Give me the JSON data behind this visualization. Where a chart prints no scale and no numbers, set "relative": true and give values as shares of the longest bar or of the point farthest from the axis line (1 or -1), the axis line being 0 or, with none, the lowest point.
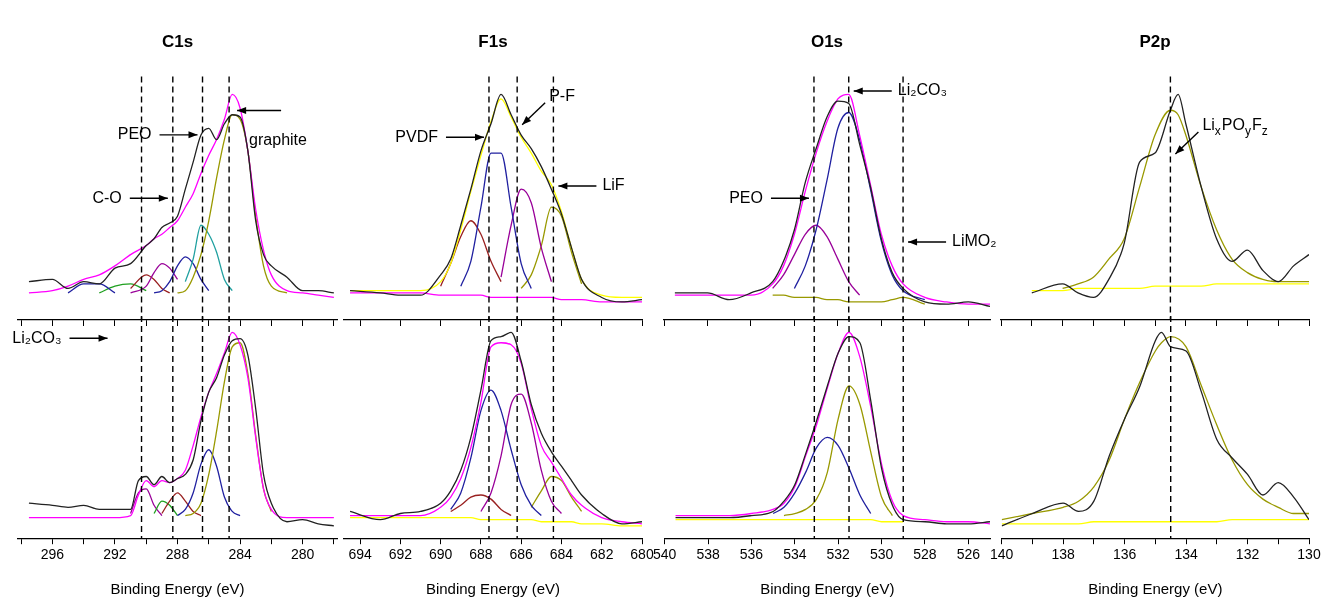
{
  "chart_data": [
    {
      "type": "line",
      "title": "C1s",
      "relative": true,
      "tick_labels": false,
      "xlim": [
        298.2,
        277.8
      ],
      "xticks": [
        {
          "value": 298,
          "label": null
        },
        296,
        {
          "value": 294,
          "label": null
        },
        292,
        {
          "value": 290,
          "label": null
        },
        288,
        {
          "value": 286,
          "label": null
        },
        284,
        {
          "value": 282,
          "label": null
        },
        280,
        {
          "value": 278,
          "label": null
        }
      ],
      "x": [
        297.5,
        296,
        295,
        294,
        293,
        292,
        291,
        290,
        289.5,
        289,
        288.5,
        288,
        287.5,
        287,
        286.5,
        286,
        285.5,
        285,
        284.5,
        284,
        283.5,
        283,
        282.5,
        282,
        281,
        280,
        279,
        278
      ],
      "series": [
        {
          "color": "#222222",
          "values": [
            0.17,
            0.18,
            0.14,
            0.17,
            0.16,
            0.23,
            0.25,
            0.33,
            0.36,
            0.41,
            0.43,
            0.46,
            0.58,
            0.7,
            0.82,
            0.85,
            0.8,
            0.87,
            0.91,
            0.9,
            0.75,
            0.44,
            0.29,
            0.24,
            0.19,
            0.13,
            0.13,
            0.12
          ]
        },
        {
          "color": "#ff00ff",
          "values": [
            0.12,
            0.13,
            0.15,
            0.18,
            0.2,
            0.24,
            0.29,
            0.33,
            0.36,
            0.38,
            0.41,
            0.44,
            0.5,
            0.56,
            0.65,
            0.73,
            0.8,
            0.89,
            1.0,
            0.94,
            0.75,
            0.49,
            0.31,
            0.2,
            0.13,
            0.12,
            0.11,
            0.1
          ]
        },
        {
          "color": "#999900",
          "values": [
            null,
            null,
            null,
            null,
            null,
            null,
            null,
            null,
            null,
            null,
            null,
            0.12,
            0.13,
            0.19,
            0.29,
            0.44,
            0.63,
            0.8,
            0.91,
            0.89,
            0.75,
            0.46,
            0.24,
            0.15,
            0.12,
            null,
            null,
            null
          ]
        },
        {
          "color": "#20a0a0",
          "values": [
            null,
            null,
            null,
            null,
            null,
            null,
            null,
            null,
            null,
            null,
            null,
            null,
            0.17,
            0.27,
            0.42,
            0.38,
            0.3,
            0.18,
            0.13,
            null,
            null,
            null,
            null,
            null,
            null,
            null,
            null,
            null
          ]
        },
        {
          "color": "#2020a0",
          "values": [
            null,
            null,
            0.12,
            0.16,
            0.16,
            0.12,
            null,
            null,
            0.12,
            0.13,
            0.17,
            0.24,
            0.28,
            0.25,
            0.18,
            0.13,
            null,
            null,
            null,
            null,
            null,
            null,
            null,
            null,
            null,
            null,
            null,
            null
          ]
        },
        {
          "color": "#990099",
          "values": [
            null,
            null,
            null,
            null,
            null,
            null,
            0.12,
            0.15,
            0.21,
            0.25,
            0.23,
            0.18,
            null,
            null,
            null,
            null,
            null,
            null,
            null,
            null,
            null,
            null,
            null,
            null,
            null,
            null,
            null,
            null
          ]
        },
        {
          "color": "#992020",
          "values": [
            null,
            null,
            null,
            null,
            null,
            null,
            0.14,
            0.2,
            0.18,
            0.14,
            0.12,
            null,
            null,
            null,
            null,
            null,
            null,
            null,
            null,
            null,
            null,
            null,
            null,
            null,
            null,
            null,
            null,
            null
          ]
        },
        {
          "color": "#20a020",
          "values": [
            null,
            null,
            null,
            null,
            0.12,
            0.15,
            0.16,
            0.13,
            null,
            null,
            null,
            null,
            null,
            null,
            null,
            null,
            null,
            null,
            null,
            null,
            null,
            null,
            null,
            null,
            null,
            null,
            null,
            null
          ]
        }
      ],
      "ref_lines": [
        {
          "axis": "x",
          "value": 290.3,
          "color": "#000000",
          "line_style": "dashed"
        },
        {
          "axis": "x",
          "value": 288.3,
          "label": "C-O",
          "color": "#000000",
          "line_style": "dashed"
        },
        {
          "axis": "x",
          "value": 286.4,
          "label": "PEO",
          "color": "#000000",
          "line_style": "dashed"
        },
        {
          "axis": "x",
          "value": 284.7,
          "label": "graphite",
          "color": "#000000",
          "line_style": "dashed"
        }
      ]
    },
    {
      "type": "line",
      "title": "F1s",
      "relative": true,
      "tick_labels": false,
      "xlim": [
        694.8,
        680
      ],
      "xticks": [
        694,
        692,
        690,
        688,
        686,
        684,
        682,
        680
      ],
      "x": [
        694.5,
        693,
        692,
        691,
        690,
        689.5,
        689,
        688.5,
        688,
        687.5,
        687,
        686.5,
        686,
        685.5,
        685,
        684.5,
        684,
        683.5,
        683,
        682,
        681,
        680
      ],
      "series": [
        {
          "color": "#222222",
          "values": [
            0.13,
            0.12,
            0.11,
            0.11,
            0.2,
            0.27,
            0.42,
            0.58,
            0.75,
            0.87,
            1.0,
            0.91,
            0.82,
            0.76,
            0.68,
            0.58,
            0.47,
            0.32,
            0.18,
            0.1,
            0.08,
            0.09
          ]
        },
        {
          "color": "#ffff00",
          "values": [
            0.13,
            0.13,
            0.13,
            0.13,
            0.17,
            0.25,
            0.4,
            0.57,
            0.73,
            0.88,
            0.98,
            0.9,
            0.81,
            0.74,
            0.66,
            0.6,
            0.48,
            0.32,
            0.18,
            0.11,
            0.1,
            0.1
          ]
        },
        {
          "color": "#ff00ff",
          "values": [
            0.12,
            0.12,
            0.12,
            0.12,
            0.11,
            0.11,
            0.11,
            0.11,
            0.11,
            0.1,
            0.1,
            0.1,
            0.1,
            0.1,
            0.1,
            0.1,
            0.09,
            0.09,
            0.09,
            0.08,
            0.08,
            0.08
          ]
        },
        {
          "color": "#2020a0",
          "values": [
            null,
            null,
            null,
            null,
            null,
            null,
            0.15,
            0.26,
            0.5,
            0.74,
            0.74,
            0.5,
            0.25,
            0.14,
            null,
            null,
            null,
            null,
            null,
            null,
            null,
            null
          ]
        },
        {
          "color": "#992020",
          "values": [
            null,
            null,
            null,
            null,
            0.15,
            0.25,
            0.37,
            0.44,
            0.38,
            0.26,
            0.17,
            null,
            null,
            null,
            null,
            null,
            null,
            null,
            null,
            null,
            null,
            null
          ]
        },
        {
          "color": "#990099",
          "values": [
            null,
            null,
            null,
            null,
            null,
            null,
            null,
            null,
            null,
            null,
            0.19,
            0.42,
            0.58,
            0.52,
            0.32,
            0.17,
            null,
            null,
            null,
            null,
            null,
            null
          ]
        },
        {
          "color": "#999900",
          "values": [
            null,
            null,
            null,
            null,
            null,
            null,
            null,
            null,
            null,
            null,
            null,
            null,
            0.14,
            0.2,
            0.33,
            0.5,
            0.46,
            0.3,
            0.16,
            null,
            null,
            null
          ]
        }
      ],
      "ref_lines": [
        {
          "axis": "x",
          "value": 687.6,
          "label": "PVDF",
          "color": "#000000",
          "line_style": "dashed"
        },
        {
          "axis": "x",
          "value": 686.2,
          "label": "P-F",
          "color": "#000000",
          "line_style": "dashed"
        },
        {
          "axis": "x",
          "value": 684.4,
          "label": "LiF",
          "color": "#000000",
          "line_style": "dashed"
        }
      ]
    },
    {
      "type": "line",
      "title": "O1s",
      "relative": true,
      "tick_labels": false,
      "xlim": [
        540,
        525
      ],
      "xticks": [
        540,
        538,
        536,
        534,
        532,
        530,
        528,
        526
      ],
      "x": [
        539.5,
        538,
        537,
        536,
        535,
        534.5,
        534,
        533.5,
        533,
        532.5,
        532,
        531.5,
        531,
        530.5,
        530,
        529.5,
        529,
        528,
        527,
        526,
        525
      ],
      "series": [
        {
          "color": "#222222",
          "values": [
            0.12,
            0.12,
            0.09,
            0.12,
            0.17,
            0.26,
            0.4,
            0.61,
            0.76,
            0.9,
            0.97,
            0.96,
            0.78,
            0.59,
            0.36,
            0.21,
            0.14,
            0.08,
            0.07,
            0.08,
            0.06
          ]
        },
        {
          "color": "#ff00ff",
          "values": [
            0.11,
            0.11,
            0.11,
            0.11,
            0.16,
            0.24,
            0.38,
            0.57,
            0.74,
            0.88,
            0.98,
            1.0,
            0.82,
            0.6,
            0.38,
            0.24,
            0.16,
            0.1,
            0.08,
            0.07,
            0.07
          ]
        },
        {
          "color": "#2020a0",
          "values": [
            null,
            null,
            null,
            null,
            null,
            null,
            0.14,
            0.24,
            0.4,
            0.62,
            0.85,
            0.92,
            0.8,
            0.58,
            0.35,
            0.2,
            0.13,
            0.09,
            null,
            null,
            null
          ]
        },
        {
          "color": "#990099",
          "values": [
            null,
            null,
            null,
            null,
            0.14,
            0.2,
            0.29,
            0.38,
            0.42,
            0.37,
            0.27,
            0.17,
            0.11,
            null,
            null,
            null,
            null,
            null,
            null,
            null,
            null
          ]
        },
        {
          "color": "#999900",
          "values": [
            null,
            null,
            null,
            null,
            0.11,
            0.11,
            0.1,
            0.1,
            0.1,
            0.09,
            0.09,
            0.08,
            0.08,
            0.08,
            0.08,
            0.09,
            0.1,
            0.07,
            null,
            null,
            null
          ]
        }
      ],
      "ref_lines": [
        {
          "axis": "x",
          "value": 533.1,
          "label": "PEO",
          "color": "#000000",
          "line_style": "dashed"
        },
        {
          "axis": "x",
          "value": 531.5,
          "label": "Li₂CO₃",
          "color": "#000000",
          "line_style": "dashed"
        },
        {
          "axis": "x",
          "value": 529.0,
          "label": "LiMO₂",
          "color": "#000000",
          "line_style": "dashed"
        }
      ]
    },
    {
      "type": "line",
      "title": "P2p",
      "relative": true,
      "tick_labels": false,
      "xlim": [
        140,
        130
      ],
      "xticks": [
        140,
        {
          "value": 139,
          "label": null
        },
        138,
        {
          "value": 137,
          "label": null
        },
        136,
        {
          "value": 135,
          "label": null
        },
        134,
        {
          "value": 133,
          "label": null
        },
        132,
        {
          "value": 131,
          "label": null
        },
        130
      ],
      "x": [
        139,
        138,
        137.5,
        137,
        136.5,
        136,
        135.5,
        135,
        134.5,
        134.25,
        134,
        133.5,
        133,
        132.5,
        132,
        131.5,
        131,
        130.5,
        130
      ],
      "series": [
        {
          "color": "#222222",
          "values": [
            0.12,
            0.16,
            0.12,
            0.1,
            0.18,
            0.34,
            0.7,
            0.74,
            0.93,
            1.0,
            0.87,
            0.59,
            0.36,
            0.26,
            0.31,
            0.22,
            0.17,
            0.24,
            0.29
          ]
        },
        {
          "color": "#999900",
          "values": [
            null,
            0.14,
            0.16,
            0.19,
            0.27,
            0.36,
            0.59,
            0.82,
            0.93,
            0.91,
            0.82,
            0.59,
            0.4,
            0.27,
            0.21,
            0.18,
            0.17,
            0.17,
            0.17
          ]
        },
        {
          "color": "#ffff00",
          "values": [
            0.13,
            0.13,
            0.14,
            0.14,
            0.14,
            0.14,
            0.14,
            0.15,
            0.15,
            0.15,
            0.15,
            0.15,
            0.16,
            0.16,
            0.16,
            0.16,
            0.16,
            0.16,
            0.16
          ]
        }
      ],
      "ref_lines": [
        {
          "axis": "x",
          "value": 134.5,
          "label": "Li$_{x}$PO$_{y}$F$_{z}$",
          "color": "#000000",
          "line_style": "dashed"
        }
      ]
    },
    {
      "type": "line",
      "xlabel": "Binding Energy (eV)",
      "relative": true,
      "tick_labels": "x",
      "xlim": [
        298.2,
        277.8
      ],
      "xticks": [
        {
          "value": 298,
          "label": null
        },
        296,
        {
          "value": 294,
          "label": null
        },
        292,
        {
          "value": 290,
          "label": null
        },
        288,
        {
          "value": 286,
          "label": null
        },
        284,
        {
          "value": 282,
          "label": null
        },
        280,
        {
          "value": 278,
          "label": null
        }
      ],
      "x": [
        297.5,
        296,
        295,
        294,
        293,
        292,
        291,
        290.5,
        290,
        289.5,
        289,
        288.5,
        288,
        287.5,
        287,
        286.5,
        286,
        285.5,
        285,
        284.5,
        284,
        283.5,
        283,
        282.5,
        282,
        281,
        280,
        279,
        278
      ],
      "series": [
        {
          "color": "#222222",
          "values": [
            0.17,
            0.16,
            0.15,
            0.16,
            0.14,
            0.14,
            0.14,
            0.28,
            0.3,
            0.26,
            0.3,
            0.27,
            0.29,
            0.31,
            0.38,
            0.57,
            0.71,
            0.78,
            0.89,
            0.96,
            0.97,
            0.89,
            0.63,
            0.31,
            0.17,
            0.08,
            0.09,
            0.07,
            0.06
          ]
        },
        {
          "color": "#ff00ff",
          "values": [
            0.1,
            0.1,
            0.1,
            0.1,
            0.1,
            0.1,
            0.11,
            0.21,
            0.28,
            0.25,
            0.28,
            0.27,
            0.29,
            0.33,
            0.45,
            0.59,
            0.71,
            0.8,
            0.9,
            1.0,
            0.94,
            0.78,
            0.49,
            0.24,
            0.14,
            0.1,
            0.1,
            0.1,
            0.1
          ]
        },
        {
          "color": "#999900",
          "values": [
            null,
            null,
            null,
            null,
            null,
            null,
            null,
            null,
            null,
            null,
            null,
            null,
            null,
            0.11,
            0.12,
            0.17,
            0.31,
            0.52,
            0.76,
            0.93,
            0.95,
            0.8,
            0.5,
            0.24,
            0.13,
            null,
            null,
            null,
            null
          ]
        },
        {
          "color": "#2020a0",
          "values": [
            null,
            null,
            null,
            null,
            null,
            null,
            null,
            null,
            null,
            null,
            null,
            null,
            0.11,
            0.14,
            0.22,
            0.36,
            0.43,
            0.35,
            0.2,
            0.13,
            0.11,
            null,
            null,
            null,
            null,
            null,
            null,
            null,
            null
          ]
        },
        {
          "color": "#992020",
          "values": [
            null,
            null,
            null,
            null,
            null,
            null,
            null,
            null,
            null,
            null,
            0.12,
            0.18,
            0.22,
            0.18,
            0.13,
            0.11,
            null,
            null,
            null,
            null,
            null,
            null,
            null,
            null,
            null,
            null,
            null,
            null,
            null
          ]
        },
        {
          "color": "#20a020",
          "values": [
            null,
            null,
            null,
            null,
            null,
            null,
            null,
            null,
            null,
            0.12,
            0.18,
            0.16,
            0.11,
            null,
            null,
            null,
            null,
            null,
            null,
            null,
            null,
            null,
            null,
            null,
            null,
            null,
            null,
            null,
            null
          ]
        },
        {
          "color": "#990099",
          "values": [
            null,
            null,
            null,
            null,
            null,
            null,
            0.12,
            0.22,
            0.24,
            0.16,
            0.11,
            null,
            null,
            null,
            null,
            null,
            null,
            null,
            null,
            null,
            null,
            null,
            null,
            null,
            null,
            null,
            null,
            null,
            null
          ]
        }
      ],
      "ref_lines": [
        {
          "axis": "x",
          "value": 290.3,
          "label": "Li₂CO₃",
          "color": "#000000",
          "line_style": "dashed"
        },
        {
          "axis": "x",
          "value": 288.3,
          "color": "#000000",
          "line_style": "dashed"
        },
        {
          "axis": "x",
          "value": 286.4,
          "color": "#000000",
          "line_style": "dashed"
        },
        {
          "axis": "x",
          "value": 284.7,
          "color": "#000000",
          "line_style": "dashed"
        }
      ]
    },
    {
      "type": "line",
      "xlabel": "Binding Energy (eV)",
      "relative": true,
      "tick_labels": "x",
      "xlim": [
        694.8,
        680
      ],
      "xticks": [
        694,
        692,
        690,
        688,
        686,
        684,
        682,
        680
      ],
      "x": [
        694.5,
        693,
        692,
        691,
        690,
        689.5,
        689,
        688.5,
        688,
        687.5,
        687,
        686.5,
        686,
        685.5,
        685,
        684.5,
        684,
        683.5,
        683,
        682,
        681,
        680
      ],
      "series": [
        {
          "color": "#222222",
          "values": [
            0.13,
            0.09,
            0.12,
            0.13,
            0.17,
            0.23,
            0.33,
            0.49,
            0.72,
            0.96,
            0.98,
            1.0,
            0.86,
            0.65,
            0.51,
            0.42,
            0.35,
            0.28,
            0.21,
            0.12,
            0.07,
            0.08
          ]
        },
        {
          "color": "#ff00ff",
          "values": [
            0.11,
            0.11,
            0.11,
            0.11,
            0.15,
            0.2,
            0.29,
            0.44,
            0.66,
            0.93,
            0.95,
            0.94,
            0.85,
            0.63,
            0.45,
            0.37,
            0.29,
            0.21,
            0.16,
            0.1,
            0.08,
            0.07
          ]
        },
        {
          "color": "#ffff00",
          "values": [
            0.1,
            0.1,
            0.1,
            0.1,
            0.1,
            0.1,
            0.1,
            0.1,
            0.09,
            0.09,
            0.09,
            0.09,
            0.09,
            0.09,
            0.08,
            0.08,
            0.08,
            0.08,
            0.07,
            0.07,
            0.06,
            0.06
          ]
        },
        {
          "color": "#2020a0",
          "values": [
            null,
            null,
            null,
            null,
            null,
            0.14,
            0.22,
            0.39,
            0.62,
            0.72,
            0.62,
            0.43,
            0.26,
            0.16,
            0.11,
            null,
            null,
            null,
            null,
            null,
            null,
            null
          ]
        },
        {
          "color": "#990099",
          "values": [
            null,
            null,
            null,
            null,
            null,
            null,
            null,
            null,
            0.13,
            0.22,
            0.4,
            0.65,
            0.7,
            0.56,
            0.33,
            0.18,
            0.12,
            null,
            null,
            null,
            null,
            null
          ]
        },
        {
          "color": "#992020",
          "values": [
            null,
            null,
            null,
            null,
            null,
            0.13,
            0.16,
            0.2,
            0.21,
            0.19,
            0.14,
            0.11,
            null,
            null,
            null,
            null,
            null,
            null,
            null,
            null,
            null,
            null
          ]
        },
        {
          "color": "#999900",
          "values": [
            null,
            null,
            null,
            null,
            null,
            null,
            null,
            null,
            null,
            null,
            null,
            null,
            null,
            0.15,
            0.23,
            0.3,
            0.28,
            0.2,
            0.13,
            null,
            null,
            null
          ]
        }
      ],
      "ref_lines": [
        {
          "axis": "x",
          "value": 687.6,
          "color": "#000000",
          "line_style": "dashed"
        },
        {
          "axis": "x",
          "value": 686.2,
          "color": "#000000",
          "line_style": "dashed"
        },
        {
          "axis": "x",
          "value": 684.4,
          "color": "#000000",
          "line_style": "dashed"
        }
      ]
    },
    {
      "type": "line",
      "xlabel": "Binding Energy (eV)",
      "relative": true,
      "tick_labels": "x",
      "xlim": [
        540,
        525
      ],
      "xticks": [
        540,
        538,
        536,
        534,
        532,
        530,
        528,
        526
      ],
      "x": [
        539.5,
        538,
        537,
        536,
        535,
        534.5,
        534,
        533.5,
        533,
        532.5,
        532,
        531.5,
        531,
        530.5,
        530,
        529.5,
        529,
        528,
        527,
        526,
        525
      ],
      "series": [
        {
          "color": "#222222",
          "values": [
            0.1,
            0.1,
            0.1,
            0.11,
            0.13,
            0.18,
            0.26,
            0.41,
            0.57,
            0.74,
            0.9,
            0.98,
            0.95,
            0.67,
            0.34,
            0.16,
            0.09,
            0.08,
            0.07,
            0.07,
            0.08
          ]
        },
        {
          "color": "#ff00ff",
          "values": [
            0.11,
            0.11,
            0.11,
            0.12,
            0.14,
            0.17,
            0.25,
            0.4,
            0.55,
            0.73,
            0.9,
            1.0,
            0.88,
            0.64,
            0.36,
            0.18,
            0.11,
            0.09,
            0.08,
            0.08,
            0.07
          ]
        },
        {
          "color": "#2020a0",
          "values": [
            null,
            null,
            null,
            null,
            0.12,
            0.15,
            0.22,
            0.32,
            0.44,
            0.49,
            0.45,
            0.34,
            0.21,
            0.12,
            null,
            null,
            null,
            null,
            null,
            null,
            null
          ]
        },
        {
          "color": "#999900",
          "values": [
            null,
            null,
            null,
            null,
            null,
            0.11,
            0.12,
            0.14,
            0.19,
            0.32,
            0.58,
            0.74,
            0.65,
            0.42,
            0.2,
            0.11,
            null,
            null,
            null,
            null,
            null
          ]
        },
        {
          "color": "#ffff00",
          "values": [
            0.09,
            0.09,
            0.09,
            0.09,
            0.09,
            0.09,
            0.09,
            0.09,
            0.09,
            0.09,
            0.09,
            0.09,
            0.09,
            0.09,
            0.08,
            0.08,
            0.08,
            null,
            null,
            null,
            null
          ]
        }
      ],
      "ref_lines": [
        {
          "axis": "x",
          "value": 533.1,
          "color": "#000000",
          "line_style": "dashed"
        },
        {
          "axis": "x",
          "value": 531.5,
          "color": "#000000",
          "line_style": "dashed"
        },
        {
          "axis": "x",
          "value": 529.0,
          "color": "#000000",
          "line_style": "dashed"
        }
      ]
    },
    {
      "type": "line",
      "xlabel": "Binding Energy (eV)",
      "relative": true,
      "tick_labels": "x",
      "xlim": [
        140,
        130
      ],
      "xticks": [
        140,
        {
          "value": 139,
          "label": null
        },
        138,
        {
          "value": 137,
          "label": null
        },
        136,
        {
          "value": 135,
          "label": null
        },
        134,
        {
          "value": 133,
          "label": null
        },
        132,
        {
          "value": 131,
          "label": null
        },
        130
      ],
      "x": [
        140,
        139,
        138,
        137.5,
        137,
        136.5,
        136,
        135.5,
        135,
        134.8,
        134.5,
        134,
        133.5,
        133,
        132.5,
        132,
        131.5,
        131,
        130.5,
        130
      ],
      "series": [
        {
          "color": "#222222",
          "values": [
            0.06,
            0.12,
            0.17,
            0.13,
            0.18,
            0.4,
            0.58,
            0.74,
            0.96,
            1.0,
            0.93,
            0.91,
            0.71,
            0.48,
            0.39,
            0.31,
            0.21,
            0.27,
            0.2,
            0.09
          ]
        },
        {
          "color": "#999900",
          "values": [
            0.09,
            0.12,
            0.15,
            0.18,
            0.25,
            0.38,
            0.58,
            0.76,
            0.91,
            0.95,
            0.98,
            0.93,
            0.74,
            0.55,
            0.38,
            0.26,
            0.19,
            0.15,
            0.12,
            0.12
          ]
        },
        {
          "color": "#ffff00",
          "values": [
            0.07,
            0.07,
            0.07,
            0.07,
            0.08,
            0.08,
            0.08,
            0.08,
            0.08,
            0.08,
            0.08,
            0.08,
            0.08,
            0.08,
            0.09,
            0.09,
            0.09,
            0.09,
            0.09,
            0.09
          ]
        }
      ],
      "ref_lines": [
        {
          "axis": "x",
          "value": 134.5,
          "color": "#000000",
          "line_style": "dashed"
        }
      ]
    }
  ]
}
